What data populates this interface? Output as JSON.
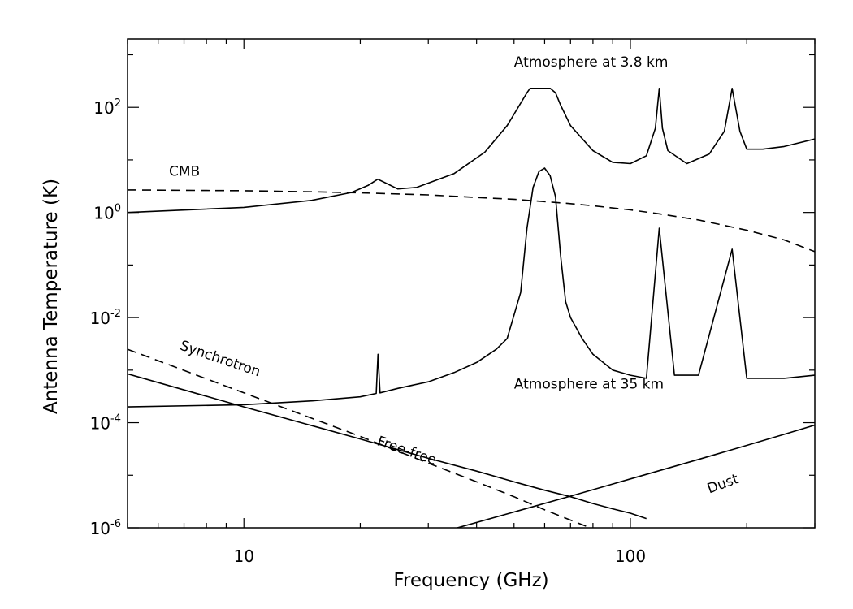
{
  "chart_data": {
    "type": "line",
    "title": "",
    "xlabel": "Frequency (GHz)",
    "ylabel": "Antenna Temperature (K)",
    "x_scale": "log",
    "y_scale": "log",
    "xlim": [
      5,
      300
    ],
    "ylim": [
      1e-06,
      2000
    ],
    "grid": false,
    "x_ticks": [
      {
        "value": 10,
        "label": "10"
      },
      {
        "value": 100,
        "label": "100"
      }
    ],
    "y_ticks": [
      {
        "value": 1e-06,
        "base": "10",
        "exp": "-6"
      },
      {
        "value": 0.0001,
        "base": "10",
        "exp": "-4"
      },
      {
        "value": 0.01,
        "base": "10",
        "exp": "-2"
      },
      {
        "value": 1,
        "base": "10",
        "exp": "0"
      },
      {
        "value": 100,
        "base": "10",
        "exp": "2"
      }
    ],
    "annotations": [
      {
        "text": "Atmosphere at 3.8 km",
        "x": 50,
        "y": 600,
        "rotate": 0
      },
      {
        "text": "CMB",
        "x": 6.4,
        "y": 5,
        "rotate": 0
      },
      {
        "text": "Synchrotron",
        "x": 6.8,
        "y": 0.0025,
        "rotate": 19
      },
      {
        "text": "Atmosphere at 35 km",
        "x": 50,
        "y": 0.00045,
        "rotate": 0
      },
      {
        "text": "Free-free",
        "x": 22,
        "y": 3.8e-05,
        "rotate": 19
      },
      {
        "text": "Dust",
        "x": 160,
        "y": 4.5e-06,
        "rotate": -20
      }
    ],
    "series": [
      {
        "name": "",
        "style": "solid",
        "x": [
          5,
          10,
          15,
          19,
          21,
          22.2,
          23.5,
          25,
          28,
          35,
          42,
          48,
          52,
          54,
          55,
          62,
          64,
          66,
          70,
          80,
          90,
          100,
          110,
          116,
          118.75,
          121,
          125,
          140,
          160,
          175,
          183.3,
          192,
          200,
          220,
          250,
          300
        ],
        "y": [
          1.0,
          1.25,
          1.7,
          2.4,
          3.3,
          4.3,
          3.5,
          2.8,
          3.0,
          5.5,
          14,
          45,
          120,
          190,
          230,
          230,
          190,
          110,
          45,
          15,
          9,
          8.5,
          12,
          40,
          230,
          40,
          15,
          8.5,
          13,
          35,
          230,
          35,
          16,
          16,
          18,
          25
        ]
      },
      {
        "name": "",
        "style": "solid",
        "x": [
          5,
          10,
          15,
          20,
          22,
          22.235,
          22.5,
          25,
          30,
          35,
          40,
          45,
          48,
          52,
          54,
          56,
          58,
          60,
          62,
          64,
          66,
          68,
          70,
          75,
          80,
          90,
          100,
          110,
          118.75,
          130,
          150,
          183.3,
          200,
          250,
          300
        ],
        "y": [
          0.0002,
          0.00022,
          0.00026,
          0.00031,
          0.00036,
          0.002,
          0.00037,
          0.00045,
          0.0006,
          0.0009,
          0.0014,
          0.0025,
          0.004,
          0.03,
          0.5,
          3,
          6,
          7,
          5,
          2,
          0.15,
          0.02,
          0.01,
          0.004,
          0.002,
          0.001,
          0.0008,
          0.0007,
          0.5,
          0.0008,
          0.0008,
          0.2,
          0.0007,
          0.0007,
          0.0008
        ]
      },
      {
        "name": "",
        "style": "dashed",
        "x": [
          5,
          7,
          10,
          15,
          20,
          30,
          40,
          50,
          60,
          70,
          80,
          100,
          120,
          150,
          200,
          250,
          300
        ],
        "y": [
          2.68,
          2.64,
          2.59,
          2.47,
          2.36,
          2.16,
          1.93,
          1.78,
          1.61,
          1.47,
          1.34,
          1.12,
          0.93,
          0.72,
          0.46,
          0.3,
          0.18
        ]
      },
      {
        "name": "",
        "style": "dashed",
        "x": [
          5,
          10,
          20,
          30,
          40,
          50,
          60,
          70,
          80,
          90
        ],
        "y": [
          0.0025,
          0.00037,
          5.5e-05,
          1.7e-05,
          7.5e-06,
          3.9e-06,
          2.2e-06,
          1.4e-06,
          9.5e-07,
          6.8e-07
        ]
      },
      {
        "name": "",
        "style": "solid",
        "x": [
          5,
          10,
          20,
          30,
          40,
          50,
          60,
          70,
          80,
          90,
          100,
          110
        ],
        "y": [
          0.00085,
          0.0002,
          4.9e-05,
          2.1e-05,
          1.2e-05,
          7.5e-06,
          5.2e-06,
          3.9e-06,
          2.9e-06,
          2.3e-06,
          1.9e-06,
          1.5e-06
        ]
      },
      {
        "name": "",
        "style": "solid",
        "x": [
          32,
          50,
          70,
          100,
          150,
          200,
          250,
          300
        ],
        "y": [
          8e-07,
          2e-06,
          4e-06,
          8.5e-06,
          2e-05,
          3.7e-05,
          6e-05,
          9e-05
        ]
      }
    ]
  }
}
